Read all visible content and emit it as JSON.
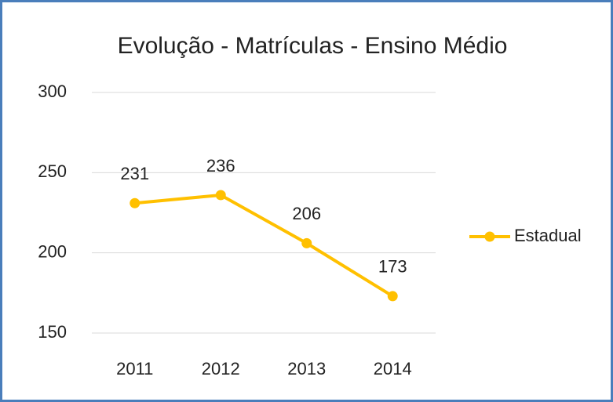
{
  "chart_data": {
    "type": "line",
    "title": "Evolução - Matrículas - Ensino Médio",
    "categories": [
      "2011",
      "2012",
      "2013",
      "2014"
    ],
    "series": [
      {
        "name": "Estadual",
        "color": "#ffc000",
        "values": [
          231,
          236,
          206,
          173
        ]
      }
    ],
    "ylim": [
      150,
      300
    ],
    "yticks": [
      150,
      200,
      250,
      300
    ],
    "grid": true,
    "legend": "right",
    "data_labels": true
  }
}
